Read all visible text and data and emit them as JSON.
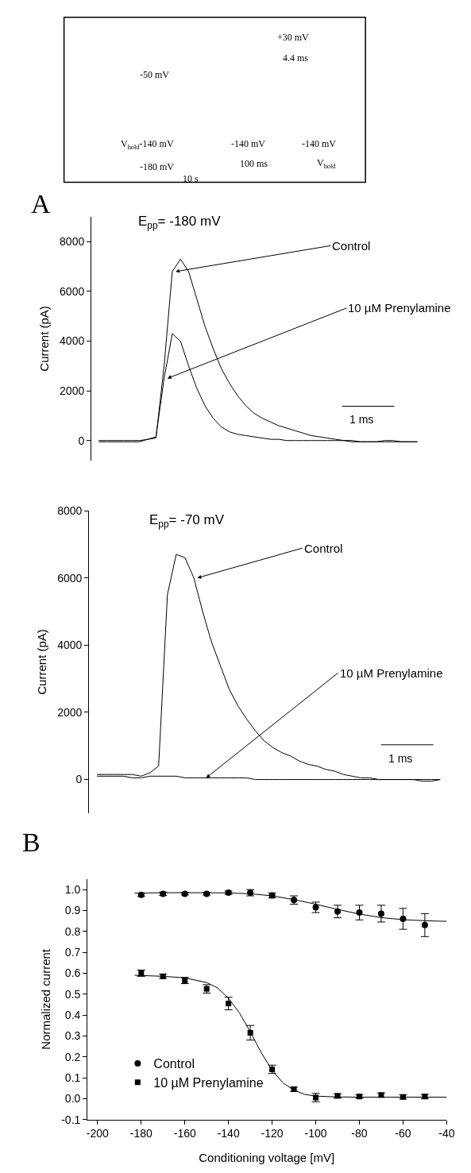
{
  "chart_data": [
    {
      "type": "other",
      "annotations": [
        "+30 mV",
        "4.4 ms",
        "-50 mV",
        "V$_{hold}$-140 mV",
        "-180 mV",
        "10 s",
        "-140 mV",
        "100 ms",
        "-140 mV",
        "V$_{hold}$"
      ]
    },
    {
      "type": "line",
      "title": "E$_{pp}$= -180 mV",
      "ylabel": "Current (pA)",
      "tick_labels": "y",
      "ylim": [
        -800,
        9000
      ],
      "yticks": [
        0,
        2000,
        4000,
        6000,
        8000
      ],
      "categories": [
        null,
        null,
        null,
        null,
        null,
        null,
        null,
        null,
        null,
        null,
        null,
        null,
        null,
        null,
        null,
        null,
        null,
        null,
        null,
        null,
        null,
        null,
        null,
        null,
        null,
        null,
        null,
        null,
        null,
        null,
        null,
        null,
        null,
        null,
        null,
        null,
        null,
        null,
        null,
        null
      ],
      "series": [
        {
          "name": "Control",
          "color": "#000000",
          "values": [
            -50,
            -50,
            -50,
            -50,
            -50,
            -50,
            50,
            100,
            3000,
            6800,
            7300,
            6800,
            5700,
            4600,
            3700,
            2900,
            2300,
            1800,
            1400,
            1100,
            900,
            750,
            600,
            500,
            400,
            300,
            200,
            150,
            100,
            50,
            0,
            0,
            -50,
            -50,
            -50,
            0,
            0,
            -50,
            -50,
            -50
          ]
        },
        {
          "name": "10 µM Prenylamine",
          "color": "#000000",
          "values": [
            0,
            0,
            0,
            0,
            0,
            0,
            50,
            150,
            2500,
            4300,
            4000,
            3000,
            2100,
            1400,
            900,
            550,
            350,
            250,
            200,
            150,
            100,
            50,
            50,
            0,
            0,
            0,
            0,
            0,
            0,
            0,
            0,
            -50,
            -50,
            -50,
            -50,
            -50,
            -50,
            -50,
            -50,
            -50
          ]
        }
      ],
      "annotations": [
        "A",
        "1 ms"
      ]
    },
    {
      "type": "line",
      "title": "E$_{pp}$= -70 mV",
      "ylabel": "Current (pA)",
      "tick_labels": "y",
      "ylim": [
        -1000,
        8000
      ],
      "yticks": [
        0,
        2000,
        4000,
        6000,
        8000
      ],
      "categories": [
        null,
        null,
        null,
        null,
        null,
        null,
        null,
        null,
        null,
        null,
        null,
        null,
        null,
        null,
        null,
        null,
        null,
        null,
        null,
        null,
        null,
        null,
        null,
        null,
        null,
        null,
        null,
        null,
        null,
        null,
        null,
        null,
        null,
        null,
        null,
        null,
        null,
        null,
        null,
        null
      ],
      "series": [
        {
          "name": "Control",
          "color": "#000000",
          "values": [
            150,
            150,
            150,
            150,
            150,
            100,
            200,
            400,
            5500,
            6700,
            6600,
            6000,
            5000,
            4100,
            3400,
            2700,
            2200,
            1800,
            1450,
            1150,
            950,
            800,
            700,
            550,
            450,
            400,
            300,
            250,
            150,
            100,
            50,
            50,
            0,
            0,
            0,
            0,
            0,
            -50,
            -50,
            0
          ]
        },
        {
          "name": "10 µM Prenylamine",
          "color": "#000000",
          "values": [
            100,
            100,
            100,
            100,
            50,
            50,
            100,
            100,
            100,
            100,
            50,
            50,
            50,
            50,
            50,
            50,
            50,
            50,
            0,
            0,
            0,
            0,
            0,
            0,
            0,
            0,
            0,
            0,
            0,
            0,
            0,
            0,
            0,
            0,
            0,
            0,
            0,
            0,
            0,
            0
          ]
        }
      ],
      "annotations": [
        "1 ms"
      ]
    },
    {
      "type": "scatter",
      "xlabel": "Conditioning voltage [mV]",
      "ylabel": "Normalized current",
      "legend": "bottom left",
      "x": [
        -180,
        -170,
        -160,
        -150,
        -140,
        -130,
        -120,
        -110,
        -100,
        -90,
        -80,
        -70,
        -60,
        -50
      ],
      "xlim": [
        -205,
        -40
      ],
      "xticks": [
        -200,
        -180,
        -160,
        -140,
        -120,
        -100,
        -80,
        -60,
        -40
      ],
      "ylim": [
        -0.1,
        1.05
      ],
      "yticks": [
        {
          "value": -0.1,
          "label": "-0.1"
        },
        {
          "value": 0,
          "label": "0.0"
        },
        {
          "value": 0.1,
          "label": "0.1"
        },
        {
          "value": 0.2,
          "label": "0.2"
        },
        {
          "value": 0.3,
          "label": "0.3"
        },
        {
          "value": 0.4,
          "label": "0.4"
        },
        {
          "value": 0.5,
          "label": "0.5"
        },
        {
          "value": 0.6,
          "label": "0.6"
        },
        {
          "value": 0.7,
          "label": "0.7"
        },
        {
          "value": 0.8,
          "label": "0.8"
        },
        {
          "value": 0.9,
          "label": "0.9"
        },
        {
          "value": 1,
          "label": "1.0"
        }
      ],
      "series": [
        {
          "name": "Control",
          "color": "#000000",
          "marker": "circle",
          "values": [
            0.975,
            0.98,
            0.98,
            0.98,
            0.985,
            0.985,
            0.972,
            0.95,
            0.915,
            0.895,
            0.89,
            0.885,
            0.86,
            0.83
          ],
          "errors": [
            0.008,
            0.008,
            0.006,
            0.006,
            0.008,
            0.015,
            0.012,
            0.02,
            0.025,
            0.03,
            0.035,
            0.04,
            0.05,
            0.055
          ]
        },
        {
          "name": "10 µM Prenylamine",
          "color": "#000000",
          "marker": "square",
          "values": [
            0.6,
            0.585,
            0.565,
            0.525,
            0.455,
            0.315,
            0.14,
            0.045,
            0.005,
            0.013,
            0.01,
            0.017,
            0.008,
            0.01
          ],
          "errors": [
            0.015,
            0.01,
            0.015,
            0.02,
            0.03,
            0.035,
            0.02,
            0.01,
            0.02,
            0.01,
            0.008,
            0.01,
            0.01,
            0.01
          ]
        },
        {
          "type": "line",
          "color": "#000000",
          "x": [
            -183,
            -170,
            -160,
            -150,
            -140,
            -130,
            -120,
            -110,
            -100,
            -90,
            -80,
            -70,
            -60,
            -50,
            -40
          ],
          "values": [
            0.983,
            0.985,
            0.985,
            0.985,
            0.984,
            0.98,
            0.97,
            0.952,
            0.93,
            0.905,
            0.883,
            0.866,
            0.856,
            0.851,
            0.848
          ]
        },
        {
          "type": "line",
          "color": "#000000",
          "x": [
            -183,
            -170,
            -160,
            -150,
            -145,
            -140,
            -135,
            -130,
            -125,
            -120,
            -115,
            -110,
            -105,
            -100,
            -90,
            -80,
            -60,
            -40
          ],
          "values": [
            0.59,
            0.585,
            0.578,
            0.555,
            0.53,
            0.48,
            0.41,
            0.32,
            0.22,
            0.135,
            0.075,
            0.04,
            0.02,
            0.012,
            0.008,
            0.007,
            0.007,
            0.007
          ]
        }
      ],
      "annotations": [
        "B"
      ]
    }
  ]
}
